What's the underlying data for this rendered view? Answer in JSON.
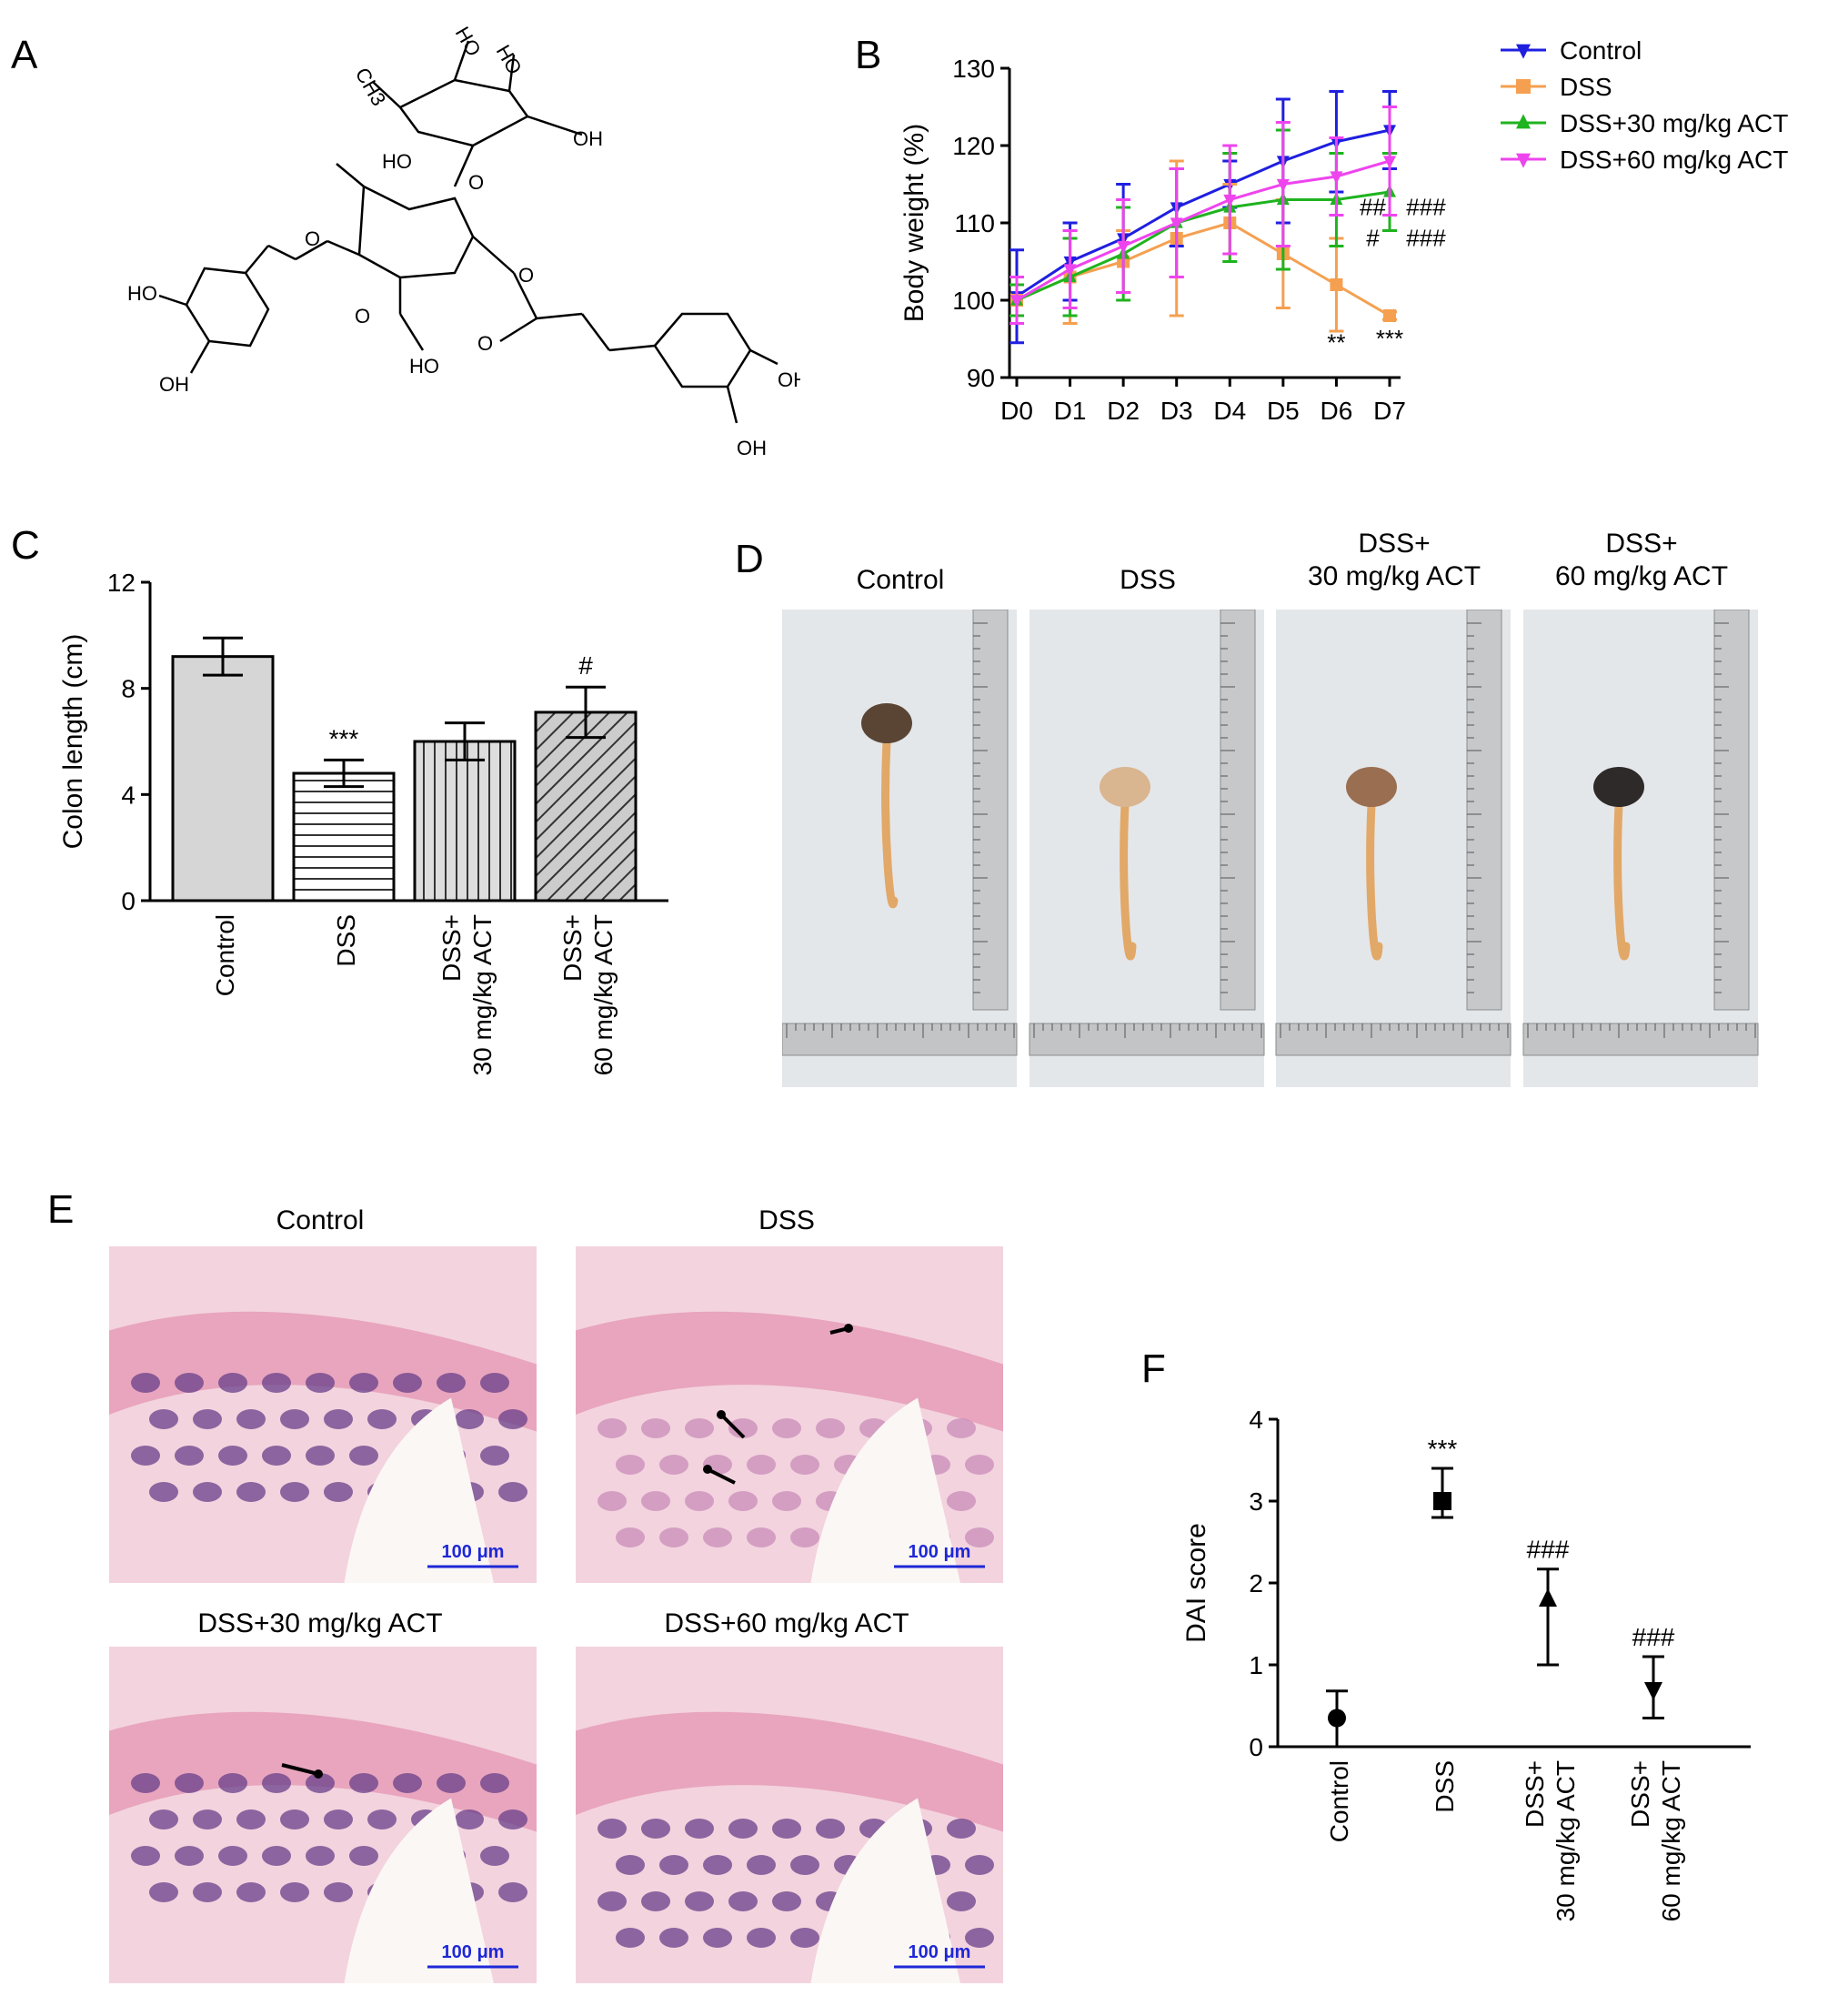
{
  "panels": {
    "a": "A",
    "b": "B",
    "c": "C",
    "d": "D",
    "e": "E",
    "f": "F"
  },
  "structure": {
    "labels": [
      "HO",
      "HO",
      "OH",
      "CH3",
      "HO",
      "OH",
      "O",
      "O",
      "O",
      "O",
      "O",
      "HO",
      "HO",
      "OH",
      "O",
      "O",
      "OH",
      "OH"
    ]
  },
  "chart_data": [
    {
      "panel": "B",
      "type": "line",
      "categories": [
        "D0",
        "D1",
        "D2",
        "D3",
        "D4",
        "D5",
        "D6",
        "D7"
      ],
      "ylabel": "Body weight (%)",
      "ylim": [
        90,
        130
      ],
      "yticks": [
        90,
        100,
        110,
        120,
        130
      ],
      "legend_position": "top-right",
      "series": [
        {
          "name": "Control",
          "color": "#1f1fe0",
          "marker": "triangle-down",
          "values": [
            100.5,
            105,
            108,
            112,
            115,
            118,
            120.5,
            122
          ],
          "err": [
            6,
            5,
            7,
            5,
            3,
            8,
            6.5,
            5
          ]
        },
        {
          "name": "DSS",
          "color": "#f5a050",
          "marker": "square",
          "values": [
            100,
            103,
            105,
            108,
            110,
            106,
            102,
            98
          ],
          "err": [
            3,
            6,
            4,
            10,
            5,
            7,
            6,
            0.5
          ]
        },
        {
          "name": "DSS+30 mg/kg ACT",
          "color": "#1fb31f",
          "marker": "triangle-up",
          "values": [
            100,
            103,
            106,
            110,
            112,
            113,
            113,
            114
          ],
          "err": [
            2,
            5,
            6,
            7,
            7,
            9,
            6,
            5
          ]
        },
        {
          "name": "DSS+60 mg/kg ACT",
          "color": "#ee44ee",
          "marker": "triangle-down",
          "values": [
            100,
            104,
            107,
            110,
            113,
            115,
            116,
            118
          ],
          "err": [
            3,
            5,
            6,
            7,
            7,
            8,
            5,
            7
          ]
        }
      ],
      "annotations": [
        {
          "text": "##",
          "x": "D6",
          "y": 111
        },
        {
          "text": "###",
          "x": "D7",
          "y": 111
        },
        {
          "text": "#",
          "x": "D6",
          "y": 107
        },
        {
          "text": "###",
          "x": "D7",
          "y": 107
        },
        {
          "text": "**",
          "x": "D6",
          "y": 93.5
        },
        {
          "text": "***",
          "x": "D7",
          "y": 94
        }
      ]
    },
    {
      "panel": "C",
      "type": "bar",
      "categories": [
        "Control",
        "DSS",
        "DSS+\n30 mg/kg ACT",
        "DSS+\n60 mg/kg ACT"
      ],
      "values": [
        9.2,
        4.8,
        6.0,
        7.1
      ],
      "err": [
        0.7,
        0.5,
        0.7,
        0.95
      ],
      "ylabel": "Colon length (cm)",
      "ylim": [
        0,
        12
      ],
      "yticks": [
        0,
        4,
        8,
        12
      ],
      "annotations": [
        "",
        "***",
        "",
        "#"
      ]
    },
    {
      "panel": "F",
      "type": "scatter",
      "categories": [
        "Control",
        "DSS",
        "DSS+\n30 mg/kg ACT",
        "DSS+\n60 mg/kg ACT"
      ],
      "values": [
        0.35,
        3.0,
        1.8,
        0.7
      ],
      "err_low": [
        0.35,
        0.2,
        0.8,
        0.35
      ],
      "err_high": [
        0.33,
        0.4,
        0.37,
        0.4
      ],
      "markers": [
        "circle",
        "square",
        "triangle-up",
        "triangle-down"
      ],
      "ylabel": "DAI score",
      "ylim": [
        0,
        4
      ],
      "yticks": [
        0,
        1,
        2,
        3,
        4
      ],
      "annotations": [
        "",
        "***",
        "###",
        "###"
      ]
    }
  ],
  "panel_d": {
    "labels": [
      "Control",
      "DSS",
      "DSS+\n30 mg/kg ACT",
      "DSS+\n60 mg/kg ACT"
    ]
  },
  "panel_e": {
    "labels": [
      "Control",
      "DSS",
      "DSS+30 mg/kg ACT",
      "DSS+60 mg/kg ACT"
    ],
    "scale_bar": "100 μm"
  }
}
